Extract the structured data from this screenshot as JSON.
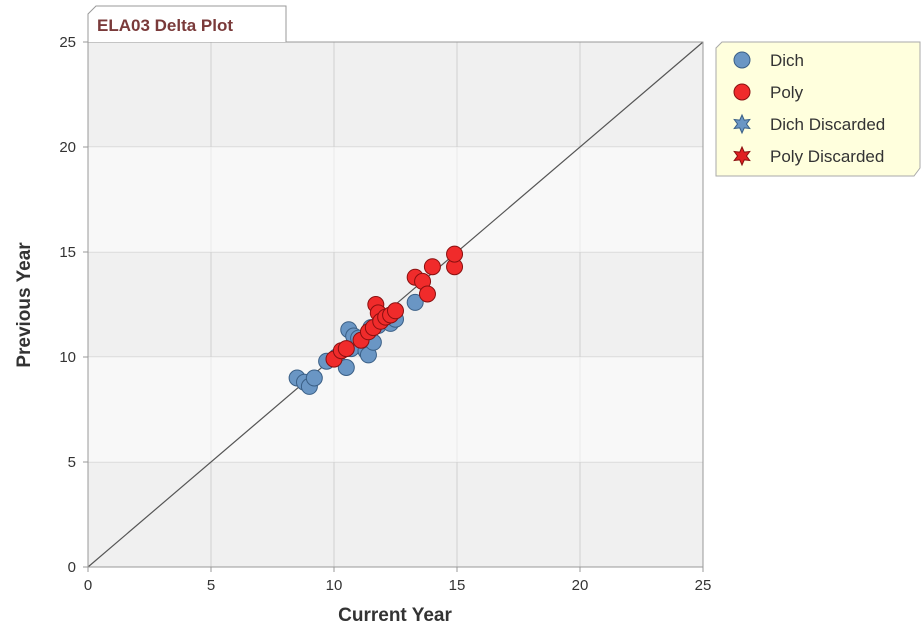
{
  "chart_data": {
    "type": "scatter",
    "title": "ELA03 Delta Plot",
    "xlabel": "Current Year",
    "ylabel": "Previous Year",
    "xlim": [
      0,
      25
    ],
    "ylim": [
      0,
      25
    ],
    "xticks": [
      "0",
      "5",
      "10",
      "15",
      "20",
      "25"
    ],
    "yticks": [
      "0",
      "5",
      "10",
      "15",
      "20",
      "25"
    ],
    "grid": true,
    "reference_line": "y = x",
    "legend_position": "top-right",
    "legend": [
      {
        "label": "Dich",
        "marker": "circle",
        "color": "#6a96c4"
      },
      {
        "label": "Poly",
        "marker": "circle",
        "color": "#f02b2b"
      },
      {
        "label": "Dich Discarded",
        "marker": "star",
        "color": "#6a96c4"
      },
      {
        "label": "Poly Discarded",
        "marker": "star",
        "color": "#e02020"
      }
    ],
    "series": [
      {
        "name": "Dich",
        "color": "#6a96c4",
        "points": [
          [
            8.5,
            9.0
          ],
          [
            8.8,
            8.8
          ],
          [
            9.0,
            8.6
          ],
          [
            9.2,
            9.0
          ],
          [
            9.7,
            9.8
          ],
          [
            10.1,
            10.0
          ],
          [
            10.5,
            9.5
          ],
          [
            10.6,
            11.3
          ],
          [
            10.7,
            10.4
          ],
          [
            10.8,
            11.0
          ],
          [
            11.0,
            10.9
          ],
          [
            11.3,
            10.3
          ],
          [
            11.4,
            10.1
          ],
          [
            11.5,
            11.4
          ],
          [
            11.6,
            10.7
          ],
          [
            11.8,
            11.5
          ],
          [
            12.1,
            11.8
          ],
          [
            12.3,
            11.6
          ],
          [
            12.5,
            11.8
          ],
          [
            13.3,
            12.6
          ]
        ]
      },
      {
        "name": "Poly",
        "color": "#f02b2b",
        "points": [
          [
            10.0,
            9.9
          ],
          [
            10.3,
            10.3
          ],
          [
            10.5,
            10.4
          ],
          [
            11.1,
            10.8
          ],
          [
            11.4,
            11.2
          ],
          [
            11.6,
            11.4
          ],
          [
            11.7,
            12.5
          ],
          [
            11.8,
            12.1
          ],
          [
            11.9,
            11.7
          ],
          [
            12.1,
            11.9
          ],
          [
            12.3,
            12.0
          ],
          [
            12.5,
            12.2
          ],
          [
            13.3,
            13.8
          ],
          [
            13.6,
            13.6
          ],
          [
            13.8,
            13.0
          ],
          [
            14.0,
            14.3
          ],
          [
            14.9,
            14.3
          ],
          [
            14.9,
            14.9
          ]
        ]
      },
      {
        "name": "Dich Discarded",
        "color": "#6a96c4",
        "points": []
      },
      {
        "name": "Poly Discarded",
        "color": "#e02020",
        "points": []
      }
    ]
  }
}
